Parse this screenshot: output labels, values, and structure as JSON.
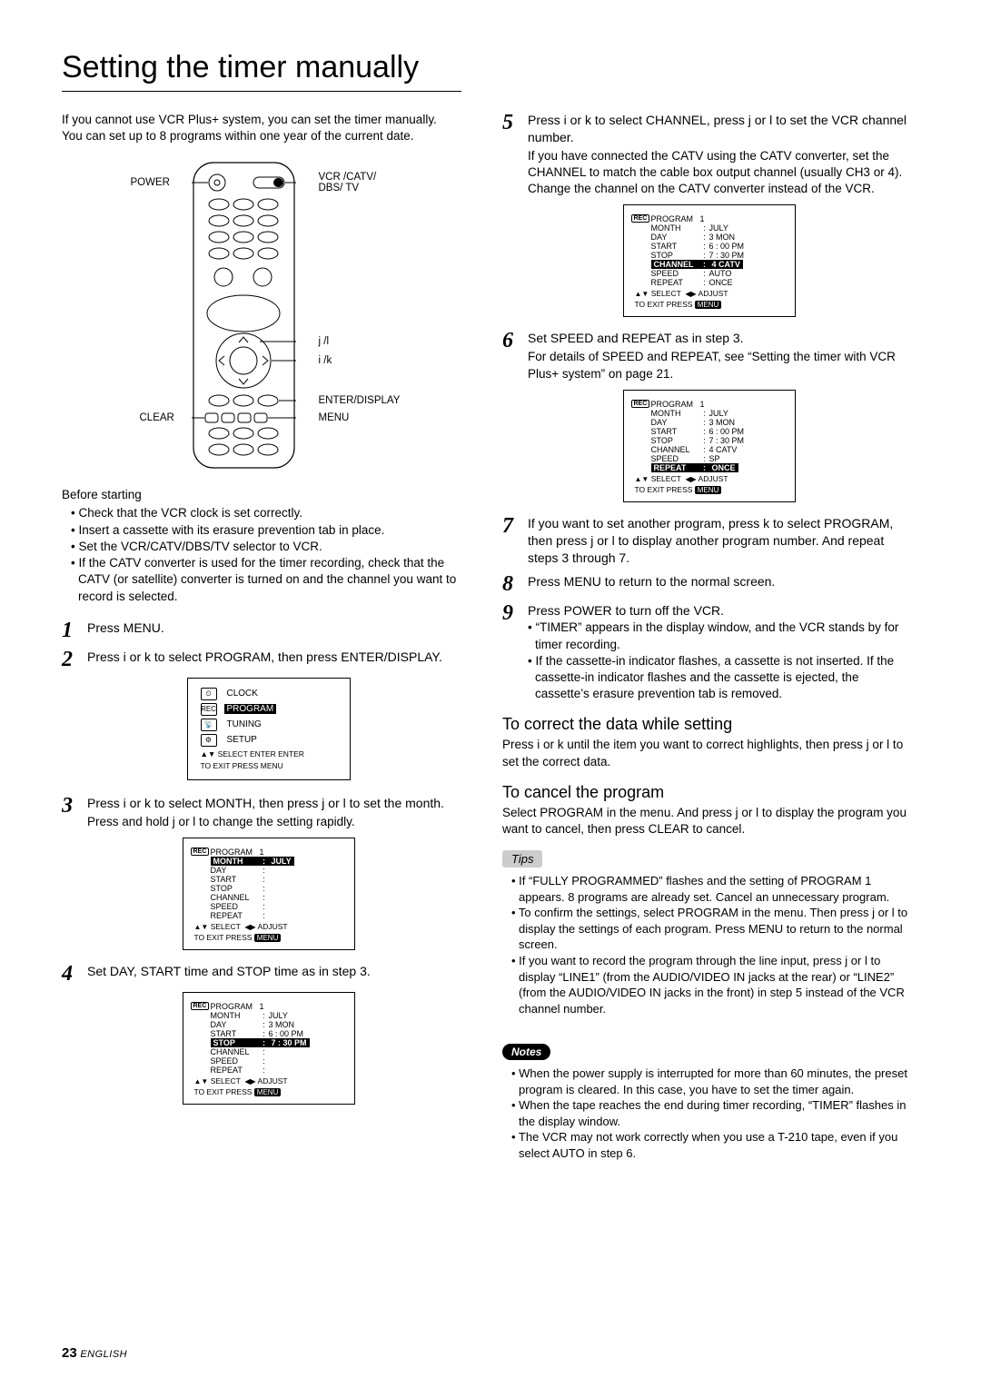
{
  "title": "Setting the timer manually",
  "intro1": "If you cannot use VCR Plus+ system, you can set the timer manually.",
  "intro2": "You can set up to 8 programs within one year of the current date.",
  "remote_labels": {
    "power": "POWER",
    "vcr": "VCR /CATV/\nDBS/ TV",
    "jl": "j   /l",
    "ik": "i   /k",
    "enter": "ENTER/DISPLAY",
    "clear": "CLEAR",
    "menu": "MENU"
  },
  "before_head": "Before starting",
  "before": [
    "• Check that the VCR clock is set correctly.",
    "• Insert a cassette with its erasure prevention tab in place.",
    "• Set the VCR/CATV/DBS/TV selector to VCR.",
    "• If the CATV converter is used for the timer recording, check that the CATV (or satellite) converter is turned on and the channel you want to record is selected."
  ],
  "steps": {
    "s1": "Press MENU.",
    "s2": "Press i   or k   to select PROGRAM, then press ENTER/DISPLAY.",
    "s3": "Press i   or k   to select MONTH, then press   j or l    to set the month.",
    "s3sub": "Press and hold j   or l   to change the setting rapidly.",
    "s4": "Set DAY, START time and STOP time as in step 3.",
    "s5": "Press i   or k   to select CHANNEL, press   j   or l    to set the VCR channel number.",
    "s5sub": "If you have connected the CATV using the CATV converter, set the CHANNEL to match the cable box output channel (usually CH3 or 4). Change the channel on the CATV converter instead of the VCR.",
    "s6": "Set SPEED and REPEAT as in step 3.",
    "s6sub": "For details of SPEED and REPEAT, see “Setting the timer with VCR Plus+ system” on page 21.",
    "s7": "If you want to set another program, press     k   to select PROGRAM, then press   j   or l    to display another program number. And repeat steps 3 through 7.",
    "s8": "Press MENU to return to the normal screen.",
    "s9": "Press POWER to turn off the VCR.",
    "s9b1": "• “TIMER” appears in the display window, and the VCR stands by for timer recording.",
    "s9b2": "• If the cassette-in indicator flashes, a cassette is not inserted. If the cassette-in indicator flashes and the cassette is ejected, the cassette’s erasure prevention tab is removed."
  },
  "correct_title": "To correct the data while setting",
  "correct_text": "Press i   or k   until the item you want to correct highlights, then press j   or l   to set the correct data.",
  "cancel_title": "To cancel the program",
  "cancel_text": "Select PROGRAM in the menu. And press j   or l   to display the program you want to cancel, then press CLEAR to cancel.",
  "tips_label": "Tips",
  "tips": [
    "• If “FULLY PROGRAMMED” flashes and the setting of PROGRAM 1 appears. 8 programs are already set. Cancel an unnecessary program.",
    "• To confirm the settings, select PROGRAM in the menu. Then press j   or l  to display the settings of each program. Press MENU to return to the normal screen.",
    "• If you want to record the program through the line input, press j   or l   to display “LINE1” (from the AUDIO/VIDEO IN jacks at the rear) or “LINE2” (from the AUDIO/VIDEO IN jacks in the front) in step 5 instead of the VCR channel number."
  ],
  "notes_label": "Notes",
  "notes": [
    "• When the power supply is interrupted for more than 60 minutes, the preset program is cleared. In this case, you have to set the timer again.",
    "• When the tape reaches the end during timer recording, “TIMER”  flashes in the display window.",
    "• The VCR may not work correctly when you use a T-210 tape, even if you select AUTO in step 6."
  ],
  "menu_osd": {
    "items": [
      "CLOCK",
      "PROGRAM",
      "TUNING",
      "SETUP"
    ],
    "highlighted": 1,
    "foot1_pre": "▲▼ SELECT",
    "foot1_chip": "ENTER",
    "foot1_post": "ENTER",
    "foot2_pre": "TO  EXIT  PRESS",
    "foot2_chip": "MENU"
  },
  "osd3": {
    "program": "1",
    "rows": [
      {
        "lab": "MONTH",
        "val": "JULY",
        "hl": true
      },
      {
        "lab": "DAY",
        "val": ""
      },
      {
        "lab": "START",
        "val": ""
      },
      {
        "lab": "STOP",
        "val": ""
      },
      {
        "lab": "CHANNEL",
        "val": ""
      },
      {
        "lab": "SPEED",
        "val": ""
      },
      {
        "lab": "REPEAT",
        "val": ""
      }
    ]
  },
  "osd4": {
    "program": "1",
    "rows": [
      {
        "lab": "MONTH",
        "val": "JULY"
      },
      {
        "lab": "DAY",
        "val": "3  MON"
      },
      {
        "lab": "START",
        "val": "6 : 00  PM"
      },
      {
        "lab": "STOP",
        "val": "7 : 30  PM",
        "hl": true
      },
      {
        "lab": "CHANNEL",
        "val": ""
      },
      {
        "lab": "SPEED",
        "val": ""
      },
      {
        "lab": "REPEAT",
        "val": ""
      }
    ]
  },
  "osd5": {
    "program": "1",
    "rows": [
      {
        "lab": "MONTH",
        "val": "JULY"
      },
      {
        "lab": "DAY",
        "val": "3  MON"
      },
      {
        "lab": "START",
        "val": "6 : 00  PM"
      },
      {
        "lab": "STOP",
        "val": "7 : 30  PM"
      },
      {
        "lab": "CHANNEL",
        "val": "4     CATV",
        "hl": true
      },
      {
        "lab": "SPEED",
        "val": "AUTO"
      },
      {
        "lab": "REPEAT",
        "val": "ONCE"
      }
    ]
  },
  "osd6": {
    "program": "1",
    "rows": [
      {
        "lab": "MONTH",
        "val": "JULY"
      },
      {
        "lab": "DAY",
        "val": "3  MON"
      },
      {
        "lab": "START",
        "val": "6 : 00  PM"
      },
      {
        "lab": "STOP",
        "val": "7 : 30  PM"
      },
      {
        "lab": "CHANNEL",
        "val": "4     CATV"
      },
      {
        "lab": "SPEED",
        "val": "SP"
      },
      {
        "lab": "REPEAT",
        "val": "ONCE",
        "hl": true
      }
    ]
  },
  "osd_footer": {
    "f1_pre": "▲▼ SELECT  ◀▶ ADJUST",
    "f2_pre": "TO  EXIT  PRESS",
    "f2_chip": "MENU"
  },
  "page_number": "23",
  "page_lang": "ENGLISH"
}
